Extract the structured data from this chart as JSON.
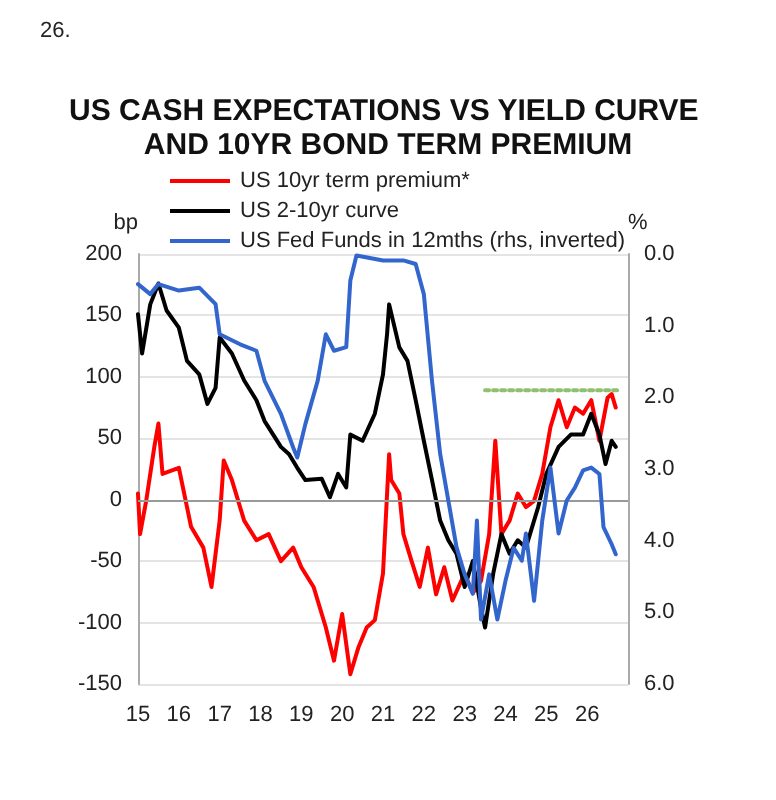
{
  "chart_data": {
    "type": "line",
    "title": "US CASH EXPECTATIONS VS YIELD CURVE AND 10YR BOND TERM PREMIUM",
    "annotations": [
      "26."
    ],
    "ylabel": "bp",
    "y2label": "%",
    "xlim": [
      2015,
      2027
    ],
    "xticks": [
      {
        "value": 2015,
        "label": "15"
      },
      {
        "value": 2016,
        "label": "16"
      },
      {
        "value": 2017,
        "label": "17"
      },
      {
        "value": 2018,
        "label": "18"
      },
      {
        "value": 2019,
        "label": "19"
      },
      {
        "value": 2020,
        "label": "20"
      },
      {
        "value": 2021,
        "label": "21"
      },
      {
        "value": 2022,
        "label": "22"
      },
      {
        "value": 2023,
        "label": "23"
      },
      {
        "value": 2024,
        "label": "24"
      },
      {
        "value": 2025,
        "label": "25"
      },
      {
        "value": 2026,
        "label": "26"
      }
    ],
    "ylim": [
      -150,
      200
    ],
    "yticks": [
      -150,
      -100,
      -50,
      0,
      50,
      100,
      150,
      200
    ],
    "y2lim": [
      6,
      0
    ],
    "y2ticks": [
      {
        "value": 0,
        "label": "0.0"
      },
      {
        "value": 1,
        "label": "1.0"
      },
      {
        "value": 2,
        "label": "2.0"
      },
      {
        "value": 3,
        "label": "3.0"
      },
      {
        "value": 4,
        "label": "4.0"
      },
      {
        "value": 5,
        "label": "5.0"
      },
      {
        "value": 6,
        "label": "6.0"
      }
    ],
    "grid": "y",
    "legend": "top left",
    "marker": "none",
    "ref_lines": [
      {
        "axis": "y",
        "value": 0,
        "color": "#999999"
      }
    ],
    "series": [
      {
        "name": "US 10yr term premium*",
        "color": "#ff0000",
        "x": [
          2015,
          2015.05,
          2015.2,
          2015.4,
          2015.5,
          2015.6,
          2016,
          2016.3,
          2016.6,
          2016.8,
          2017,
          2017.1,
          2017.3,
          2017.6,
          2017.9,
          2018.2,
          2018.5,
          2018.8,
          2019,
          2019.3,
          2019.6,
          2019.8,
          2020,
          2020.2,
          2020.4,
          2020.6,
          2020.8,
          2021,
          2021.1,
          2021.15,
          2021.2,
          2021.4,
          2021.5,
          2021.7,
          2021.9,
          2022.1,
          2022.3,
          2022.5,
          2022.7,
          2023,
          2023.2,
          2023.4,
          2023.6,
          2023.75,
          2023.9,
          2024.1,
          2024.3,
          2024.5,
          2024.7,
          2024.9,
          2025.1,
          2025.3,
          2025.5,
          2025.7,
          2025.9,
          2026.1,
          2026.3,
          2026.5,
          2026.6,
          2026.7
        ],
        "values": [
          5,
          -28,
          -1,
          43,
          62,
          21,
          26,
          -22,
          -39,
          -71,
          -17,
          32,
          16,
          -17,
          -33,
          -28,
          -50,
          -39,
          -55,
          -71,
          -104,
          -131,
          -93,
          -142,
          -120,
          -104,
          -98,
          -60,
          5,
          37,
          16,
          5,
          -28,
          -50,
          -71,
          -39,
          -77,
          -55,
          -82,
          -60,
          -76,
          -66,
          -28,
          48,
          -28,
          -17,
          5,
          -6,
          -1,
          21,
          59,
          81,
          59,
          75,
          70,
          81,
          48,
          83,
          86,
          75
        ]
      },
      {
        "name": "US 2-10yr curve",
        "color": "#000000",
        "x": [
          2015,
          2015.1,
          2015.3,
          2015.5,
          2015.7,
          2016,
          2016.2,
          2016.5,
          2016.7,
          2016.9,
          2017,
          2017.3,
          2017.6,
          2017.9,
          2018.1,
          2018.5,
          2018.7,
          2018.9,
          2019.1,
          2019.5,
          2019.7,
          2019.9,
          2020.1,
          2020.2,
          2020.5,
          2020.8,
          2021,
          2021.1,
          2021.15,
          2021.4,
          2021.6,
          2021.8,
          2022,
          2022.2,
          2022.4,
          2022.6,
          2022.8,
          2023,
          2023.2,
          2023.4,
          2023.5,
          2023.7,
          2023.9,
          2024.1,
          2024.3,
          2024.5,
          2024.8,
          2025,
          2025.3,
          2025.6,
          2025.9,
          2026.1,
          2026.3,
          2026.45,
          2026.6,
          2026.7
        ],
        "values": [
          151,
          119,
          159,
          176,
          154,
          140,
          113,
          102,
          78,
          91,
          132,
          119,
          97,
          81,
          64,
          43,
          37,
          26,
          16,
          17,
          2,
          21,
          10,
          53,
          48,
          70,
          102,
          135,
          159,
          124,
          113,
          81,
          48,
          16,
          -17,
          -33,
          -44,
          -71,
          -50,
          -88,
          -104,
          -60,
          -28,
          -44,
          -33,
          -39,
          -6,
          21,
          43,
          53,
          53,
          70,
          53,
          29,
          48,
          43
        ]
      },
      {
        "name": "US Fed Funds in 12mths (rhs, inverted)",
        "color": "#3366cc",
        "axis": "y2",
        "x": [
          2015,
          2015.3,
          2015.5,
          2016,
          2016.5,
          2016.9,
          2017,
          2017.5,
          2017.9,
          2018.1,
          2018.5,
          2018.8,
          2018.9,
          2019.1,
          2019.4,
          2019.6,
          2019.8,
          2020.1,
          2020.2,
          2020.35,
          2021,
          2021.5,
          2021.8,
          2022,
          2022.2,
          2022.4,
          2022.6,
          2022.8,
          2023,
          2023.2,
          2023.3,
          2023.4,
          2023.6,
          2023.8,
          2024,
          2024.2,
          2024.4,
          2024.5,
          2024.7,
          2024.9,
          2025.1,
          2025.3,
          2025.5,
          2025.7,
          2025.9,
          2026.1,
          2026.3,
          2026.4,
          2026.6,
          2026.7
        ],
        "values": [
          0.42,
          0.56,
          0.42,
          0.51,
          0.47,
          0.7,
          1.12,
          1.26,
          1.35,
          1.77,
          2.23,
          2.7,
          2.84,
          2.37,
          1.77,
          1.12,
          1.35,
          1.3,
          0.37,
          0.02,
          0.09,
          0.09,
          0.14,
          0.56,
          1.77,
          2.79,
          3.44,
          4.09,
          4.47,
          4.74,
          3.72,
          5.1,
          4.47,
          5.1,
          4.56,
          4.1,
          4.28,
          3.9,
          4.84,
          3.72,
          2.98,
          3.9,
          3.44,
          3.26,
          3.02,
          2.98,
          3.07,
          3.81,
          4.05,
          4.19
        ]
      },
      {
        "color": "#8fbf6f",
        "axis": "y2",
        "line_style": "dotted",
        "x": [
          2023.5,
          2026.75
        ],
        "values": [
          1.9,
          1.9
        ]
      }
    ]
  }
}
